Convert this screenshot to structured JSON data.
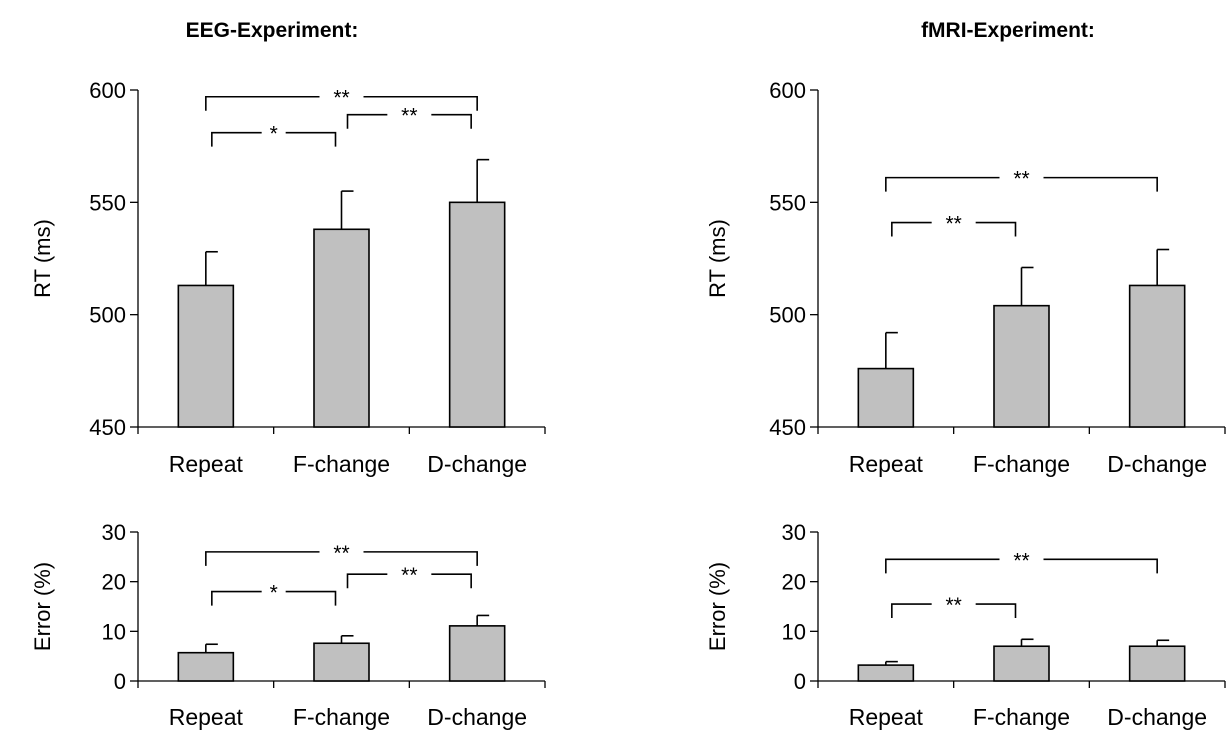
{
  "experiments": [
    {
      "title": "EEG-Experiment:"
    },
    {
      "title": "fMRI-Experiment:"
    }
  ],
  "colors": {
    "bar_fill": "#c0c0c0",
    "stroke": "#000000",
    "background": "#ffffff"
  },
  "chart_data": [
    {
      "type": "bar",
      "experiment": "EEG-Experiment:",
      "categories": [
        "Repeat",
        "F-change",
        "D-change"
      ],
      "values": [
        513,
        538,
        550
      ],
      "errors": [
        15,
        17,
        19
      ],
      "ylabel": "RT (ms)",
      "ylim": [
        450,
        600
      ],
      "yticks": [
        "450",
        "500",
        "550",
        "600"
      ],
      "grid": false,
      "significance": [
        {
          "from": "Repeat",
          "to": "D-change",
          "label": "**",
          "y": 597
        },
        {
          "from": "Repeat",
          "to": "F-change",
          "label": "*",
          "y": 581
        },
        {
          "from": "F-change",
          "to": "D-change",
          "label": "**",
          "y": 589
        }
      ]
    },
    {
      "type": "bar",
      "experiment": "fMRI-Experiment:",
      "categories": [
        "Repeat",
        "F-change",
        "D-change"
      ],
      "values": [
        476,
        504,
        513
      ],
      "errors": [
        16,
        17,
        16
      ],
      "ylabel": "RT (ms)",
      "ylim": [
        450,
        600
      ],
      "yticks": [
        "450",
        "500",
        "550",
        "600"
      ],
      "grid": false,
      "significance": [
        {
          "from": "Repeat",
          "to": "D-change",
          "label": "**",
          "y": 561
        },
        {
          "from": "Repeat",
          "to": "F-change",
          "label": "**",
          "y": 541
        }
      ]
    },
    {
      "type": "bar",
      "experiment": "EEG-Experiment:",
      "categories": [
        "Repeat",
        "F-change",
        "D-change"
      ],
      "values": [
        5.7,
        7.6,
        11.1
      ],
      "errors": [
        1.7,
        1.5,
        2.1
      ],
      "ylabel": "Error (%)",
      "ylim": [
        0,
        30
      ],
      "yticks": [
        "0",
        "10",
        "20",
        "30"
      ],
      "grid": false,
      "significance": [
        {
          "from": "Repeat",
          "to": "D-change",
          "label": "**",
          "y": 26
        },
        {
          "from": "Repeat",
          "to": "F-change",
          "label": "*",
          "y": 18
        },
        {
          "from": "F-change",
          "to": "D-change",
          "label": "**",
          "y": 21.5
        }
      ]
    },
    {
      "type": "bar",
      "experiment": "fMRI-Experiment:",
      "categories": [
        "Repeat",
        "F-change",
        "D-change"
      ],
      "values": [
        3.2,
        7.0,
        7.0
      ],
      "errors": [
        0.7,
        1.4,
        1.2
      ],
      "ylabel": "Error (%)",
      "ylim": [
        0,
        30
      ],
      "yticks": [
        "0",
        "10",
        "20",
        "30"
      ],
      "grid": false,
      "significance": [
        {
          "from": "Repeat",
          "to": "D-change",
          "label": "**",
          "y": 24.5
        },
        {
          "from": "Repeat",
          "to": "F-change",
          "label": "**",
          "y": 15.5
        }
      ]
    }
  ]
}
